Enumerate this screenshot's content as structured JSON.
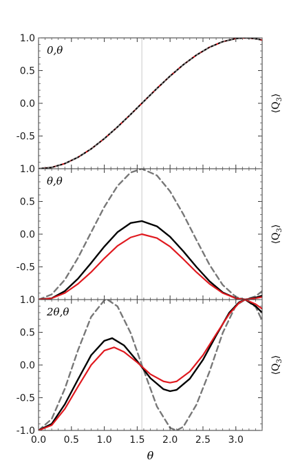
{
  "chart_data": {
    "type": "line",
    "xlabel": "θ",
    "xlim": [
      0,
      3.4
    ],
    "x_ticks": [
      "0.0",
      "0.5",
      "1.0",
      "1.5",
      "2.0",
      "2.5",
      "3.0"
    ],
    "y_ticks": [
      "1.0",
      "0.5",
      "0.0",
      "-0.5",
      "-1.0"
    ],
    "reference_line_x": 1.5708,
    "colors": {
      "black": "#000000",
      "red": "#e0191f",
      "gray": "#777777",
      "ref": "#c8c8c8"
    },
    "panels": [
      {
        "label": "0,θ",
        "ylabel": "⟨Q3⟩",
        "ylim": [
          -1,
          1
        ],
        "series": [
          {
            "style": "red-solid",
            "x": [
              0,
              0.2,
              0.4,
              0.6,
              0.8,
              1.0,
              1.2,
              1.4,
              1.5708,
              1.8,
              2.0,
              2.2,
              2.4,
              2.6,
              2.8,
              3.0,
              3.1416,
              3.3,
              3.4
            ],
            "values": [
              -1.0,
              -0.98,
              -0.921,
              -0.825,
              -0.697,
              -0.54,
              -0.362,
              -0.17,
              0.0,
              0.227,
              0.416,
              0.589,
              0.737,
              0.857,
              0.942,
              0.99,
              1.0,
              0.988,
              0.967
            ]
          },
          {
            "style": "gray-dashed",
            "x": [
              0,
              0.2,
              0.4,
              0.6,
              0.8,
              1.0,
              1.2,
              1.4,
              1.5708,
              1.8,
              2.0,
              2.2,
              2.4,
              2.6,
              2.8,
              3.0,
              3.1416,
              3.3,
              3.4
            ],
            "values": [
              -1.0,
              -0.98,
              -0.921,
              -0.825,
              -0.697,
              -0.54,
              -0.362,
              -0.17,
              0.0,
              0.227,
              0.416,
              0.589,
              0.737,
              0.857,
              0.942,
              0.99,
              1.0,
              0.988,
              0.967
            ]
          },
          {
            "style": "black-dotted",
            "x": [
              0,
              0.2,
              0.4,
              0.6,
              0.8,
              1.0,
              1.2,
              1.4,
              1.5708,
              1.8,
              2.0,
              2.2,
              2.4,
              2.6,
              2.8,
              3.0,
              3.1416,
              3.3,
              3.4
            ],
            "values": [
              -1.0,
              -0.98,
              -0.921,
              -0.825,
              -0.697,
              -0.54,
              -0.362,
              -0.17,
              0.0,
              0.227,
              0.416,
              0.589,
              0.737,
              0.857,
              0.942,
              0.99,
              1.0,
              0.988,
              0.967
            ]
          }
        ]
      },
      {
        "label": "θ,θ",
        "ylabel": "⟨Q3⟩",
        "ylim": [
          -1,
          1
        ],
        "series": [
          {
            "style": "gray-dashed",
            "x": [
              0,
              0.2,
              0.4,
              0.6,
              0.8,
              1.0,
              1.2,
              1.4,
              1.5708,
              1.8,
              2.0,
              2.2,
              2.4,
              2.6,
              2.8,
              3.0,
              3.1416,
              3.3,
              3.4
            ],
            "values": [
              -1.0,
              -0.921,
              -0.697,
              -0.362,
              0.029,
              0.416,
              0.737,
              0.942,
              1.0,
              0.897,
              0.654,
              0.307,
              -0.087,
              -0.468,
              -0.776,
              -0.96,
              -1.0,
              -0.95,
              -0.87
            ]
          },
          {
            "style": "black-solid",
            "x": [
              0,
              0.2,
              0.4,
              0.6,
              0.8,
              1.0,
              1.2,
              1.4,
              1.5708,
              1.8,
              2.0,
              2.2,
              2.4,
              2.6,
              2.8,
              3.0,
              3.1416,
              3.3,
              3.4
            ],
            "values": [
              -1.0,
              -0.98,
              -0.87,
              -0.68,
              -0.44,
              -0.19,
              0.03,
              0.17,
              0.2,
              0.12,
              -0.04,
              -0.26,
              -0.5,
              -0.72,
              -0.89,
              -0.98,
              -1.0,
              -0.97,
              -0.94
            ]
          },
          {
            "style": "red-solid",
            "x": [
              0,
              0.2,
              0.4,
              0.6,
              0.8,
              1.0,
              1.2,
              1.4,
              1.5708,
              1.8,
              2.0,
              2.2,
              2.4,
              2.6,
              2.8,
              3.0,
              3.1416,
              3.3,
              3.4
            ],
            "values": [
              -1.0,
              -0.98,
              -0.9,
              -0.76,
              -0.58,
              -0.37,
              -0.18,
              -0.05,
              0.0,
              -0.06,
              -0.19,
              -0.38,
              -0.58,
              -0.76,
              -0.9,
              -0.98,
              -1.0,
              -0.98,
              -0.96
            ]
          }
        ]
      },
      {
        "label": "2θ,θ",
        "ylabel": "⟨Q3⟩",
        "ylim": [
          -1,
          1
        ],
        "series": [
          {
            "style": "gray-dashed",
            "x": [
              0,
              0.2,
              0.4,
              0.6,
              0.8,
              1.0,
              1.0472,
              1.2,
              1.4,
              1.5708,
              1.8,
              2.0,
              2.0944,
              2.2,
              2.4,
              2.6,
              2.8,
              3.0,
              3.1416,
              3.3,
              3.4
            ],
            "values": [
              -1.0,
              -0.825,
              -0.362,
              0.227,
              0.737,
              0.99,
              1.0,
              0.897,
              0.491,
              0.0,
              -0.634,
              -0.96,
              -1.0,
              -0.946,
              -0.608,
              -0.1,
              0.49,
              0.91,
              1.0,
              0.89,
              0.68
            ]
          },
          {
            "style": "black-solid",
            "x": [
              0,
              0.2,
              0.4,
              0.6,
              0.8,
              1.0,
              1.12,
              1.3,
              1.5,
              1.7,
              1.9,
              2.0,
              2.1,
              2.3,
              2.5,
              2.7,
              2.9,
              3.05,
              3.1416,
              3.3,
              3.4
            ],
            "values": [
              -1.0,
              -0.9,
              -0.6,
              -0.22,
              0.15,
              0.37,
              0.41,
              0.3,
              0.06,
              -0.2,
              -0.37,
              -0.4,
              -0.38,
              -0.21,
              0.08,
              0.45,
              0.8,
              0.96,
              1.0,
              0.9,
              0.8
            ]
          },
          {
            "style": "red-solid",
            "x": [
              0,
              0.2,
              0.4,
              0.6,
              0.8,
              1.0,
              1.15,
              1.3,
              1.5,
              1.7,
              1.9,
              2.0,
              2.1,
              2.3,
              2.5,
              2.7,
              2.9,
              3.05,
              3.1416,
              3.3,
              3.4
            ],
            "values": [
              -1.0,
              -0.92,
              -0.67,
              -0.33,
              0.0,
              0.22,
              0.27,
              0.2,
              0.04,
              -0.14,
              -0.25,
              -0.27,
              -0.25,
              -0.1,
              0.15,
              0.47,
              0.78,
              0.95,
              1.0,
              0.93,
              0.86
            ]
          }
        ]
      }
    ]
  }
}
